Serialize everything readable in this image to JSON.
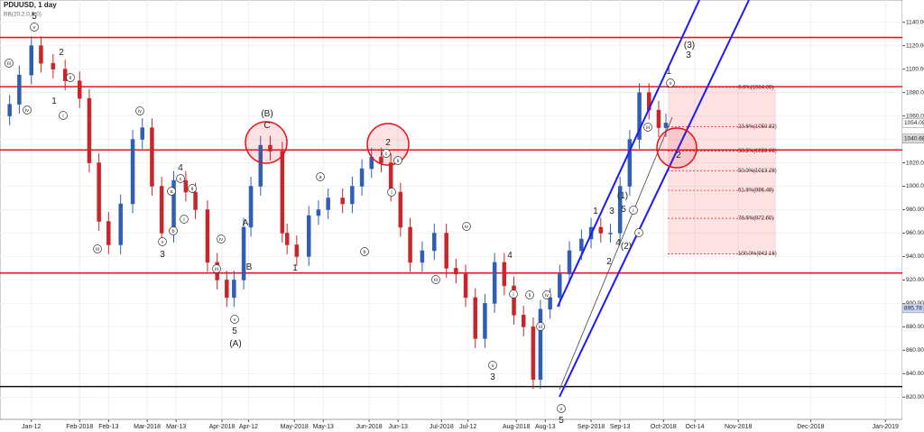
{
  "chart_data": {
    "type": "candlestick",
    "title": "PDUUSD, 1 day",
    "subtitle": "BB(20,2.0,0,0)",
    "up_color": "#2f5fb3",
    "down_color": "#c8262a",
    "grid": true,
    "xlim": [
      -2,
      372
    ],
    "ylim": [
      801,
      1159
    ],
    "xticks": [
      {
        "value": 11,
        "label": "Jan-12"
      },
      {
        "value": 31,
        "label": "Feb-2018"
      },
      {
        "value": 43,
        "label": "Feb-13"
      },
      {
        "value": 59,
        "label": "Mar-2018"
      },
      {
        "value": 71,
        "label": "Mar-13"
      },
      {
        "value": 90,
        "label": "Apr-2018"
      },
      {
        "value": 101,
        "label": "Apr-12"
      },
      {
        "value": 120,
        "label": "May-2018"
      },
      {
        "value": 132,
        "label": "May-13"
      },
      {
        "value": 151,
        "label": "Jun-2018"
      },
      {
        "value": 163,
        "label": "Jun-13"
      },
      {
        "value": 181,
        "label": "Jul-2018"
      },
      {
        "value": 192,
        "label": "Jul-12"
      },
      {
        "value": 212,
        "label": "Aug-2018"
      },
      {
        "value": 224,
        "label": "Aug-13"
      },
      {
        "value": 243,
        "label": "Sep-2018"
      },
      {
        "value": 255,
        "label": "Sep-13"
      },
      {
        "value": 273,
        "label": "Oct-2018"
      },
      {
        "value": 286,
        "label": "Oct-14"
      },
      {
        "value": 304,
        "label": "Nov-2018"
      },
      {
        "value": 334,
        "label": "Dec-2018"
      },
      {
        "value": 365,
        "label": "Jan-2019"
      }
    ],
    "yticks": [
      {
        "value": 820,
        "label": "820.00"
      },
      {
        "value": 840,
        "label": "840.00"
      },
      {
        "value": 860,
        "label": "860.00"
      },
      {
        "value": 880,
        "label": "880.00"
      },
      {
        "value": 900,
        "label": "900.00"
      },
      {
        "value": 920,
        "label": "920.00"
      },
      {
        "value": 940,
        "label": "940.00"
      },
      {
        "value": 960,
        "label": "960.00"
      },
      {
        "value": 980,
        "label": "980.00"
      },
      {
        "value": 1000,
        "label": "1000.00"
      },
      {
        "value": 1020,
        "label": "1020.00"
      },
      {
        "value": 1040,
        "label": "1040.00"
      },
      {
        "value": 1060,
        "label": "1060.00"
      },
      {
        "value": 1080,
        "label": "1080.00"
      },
      {
        "value": 1100,
        "label": "1100.00"
      },
      {
        "value": 1120,
        "label": "1120.00"
      },
      {
        "value": 1140,
        "label": "1140.00"
      }
    ],
    "x": [
      2,
      6,
      11,
      15,
      20,
      25,
      31,
      35,
      39,
      43,
      48,
      53,
      57,
      61,
      65,
      70,
      75,
      79,
      84,
      88,
      92,
      95,
      99,
      102,
      106,
      110,
      115,
      117,
      121,
      126,
      130,
      134,
      140,
      144,
      148,
      152,
      156,
      160,
      164,
      168,
      173,
      178,
      183,
      187,
      191,
      195,
      199,
      203,
      207,
      211,
      215,
      219,
      222,
      226,
      230,
      234,
      239,
      243,
      247,
      251,
      255,
      259,
      263,
      267,
      271,
      274
    ],
    "open": [
      1060,
      1070,
      1095,
      1120,
      1105,
      1100,
      1090,
      1075,
      1020,
      970,
      950,
      985,
      1040,
      1050,
      1000,
      960,
      1005,
      995,
      980,
      935,
      920,
      905,
      920,
      965,
      1000,
      1035,
      1030,
      960,
      950,
      940,
      975,
      980,
      990,
      985,
      1000,
      1015,
      1025,
      1020,
      995,
      965,
      935,
      945,
      960,
      930,
      925,
      905,
      870,
      900,
      935,
      915,
      890,
      880,
      835,
      895,
      905,
      925,
      945,
      955,
      965,
      960,
      960,
      1000,
      1040,
      1080,
      1065,
      1050
    ],
    "high": [
      1078,
      1103,
      1128,
      1128,
      1113,
      1108,
      1098,
      1083,
      1028,
      978,
      993,
      1048,
      1058,
      1058,
      1008,
      1013,
      1013,
      1003,
      988,
      943,
      928,
      928,
      973,
      1008,
      1043,
      1043,
      1038,
      968,
      958,
      983,
      988,
      998,
      998,
      1008,
      1023,
      1033,
      1033,
      1028,
      1003,
      973,
      953,
      968,
      968,
      938,
      933,
      913,
      908,
      943,
      943,
      923,
      898,
      888,
      903,
      913,
      933,
      953,
      963,
      973,
      973,
      968,
      1008,
      1048,
      1088,
      1088,
      1073,
      1062
    ],
    "low": [
      1052,
      1062,
      1087,
      1097,
      1092,
      1082,
      1067,
      1012,
      962,
      942,
      942,
      977,
      1032,
      992,
      952,
      952,
      987,
      972,
      927,
      912,
      897,
      897,
      912,
      957,
      992,
      1022,
      952,
      942,
      932,
      932,
      967,
      972,
      977,
      977,
      992,
      1007,
      1012,
      987,
      957,
      927,
      927,
      937,
      922,
      917,
      897,
      862,
      862,
      892,
      907,
      882,
      872,
      827,
      827,
      887,
      897,
      917,
      937,
      947,
      952,
      952,
      952,
      992,
      1032,
      1057,
      1042,
      1042
    ],
    "close": [
      1070,
      1095,
      1120,
      1105,
      1100,
      1090,
      1075,
      1020,
      970,
      950,
      985,
      1040,
      1050,
      1000,
      960,
      1005,
      995,
      980,
      935,
      920,
      905,
      920,
      965,
      1000,
      1035,
      1030,
      960,
      950,
      940,
      975,
      980,
      990,
      985,
      1000,
      1015,
      1025,
      1020,
      995,
      965,
      935,
      945,
      960,
      930,
      925,
      905,
      870,
      900,
      935,
      915,
      890,
      880,
      835,
      895,
      905,
      925,
      945,
      955,
      965,
      960,
      960,
      1000,
      1040,
      1080,
      1065,
      1050,
      1054
    ],
    "hlines": [
      {
        "value": 1127,
        "color": "#e8141c"
      },
      {
        "value": 1085,
        "color": "#e8141c"
      },
      {
        "value": 1031,
        "color": "#e8141c"
      },
      {
        "value": 926,
        "color": "#e8141c"
      },
      {
        "value": 829,
        "color": "#111111"
      }
    ],
    "fibonacci": [
      {
        "value": 1084.39,
        "label": "0.0%(1084.39)"
      },
      {
        "value": 1050.82,
        "label": "23.6%(1050.82)"
      },
      {
        "value": 1030.06,
        "label": "38.2%(1030.06)"
      },
      {
        "value": 1013.28,
        "label": "50.0%(1013.28)"
      },
      {
        "value": 996.49,
        "label": "61.8%(996.49)"
      },
      {
        "value": 972.6,
        "label": "78.6%(972.60)"
      },
      {
        "value": 942.16,
        "label": "100.0%(942.16)"
      }
    ],
    "price_tags": [
      {
        "value": 1054.09,
        "color": "#ffffff"
      },
      {
        "value": 1040.68,
        "color": "#d9d9d9"
      },
      {
        "value": 895.78,
        "color": "#c9d3f5"
      }
    ],
    "annotations": [
      "5",
      "v",
      "2",
      "iii",
      "ii",
      "1",
      "iv",
      "i",
      "(B)",
      "C",
      "iv",
      "4",
      "c",
      "a",
      "ii",
      "i",
      "b",
      "v",
      "3",
      "iii",
      "iv",
      "iii",
      "A",
      "B",
      "v",
      "5",
      "(A)",
      "1",
      "a",
      "b",
      "2",
      "c",
      "ii",
      "i",
      "iv",
      "iii",
      "4",
      "i",
      "ii",
      "iv",
      "iii",
      "v",
      "3",
      "v",
      "5",
      "1",
      "2",
      "3",
      "(1)",
      "5",
      "4",
      "(2)",
      "i",
      "v",
      "1",
      "v",
      "(3)",
      "3",
      "2",
      "iii"
    ]
  }
}
